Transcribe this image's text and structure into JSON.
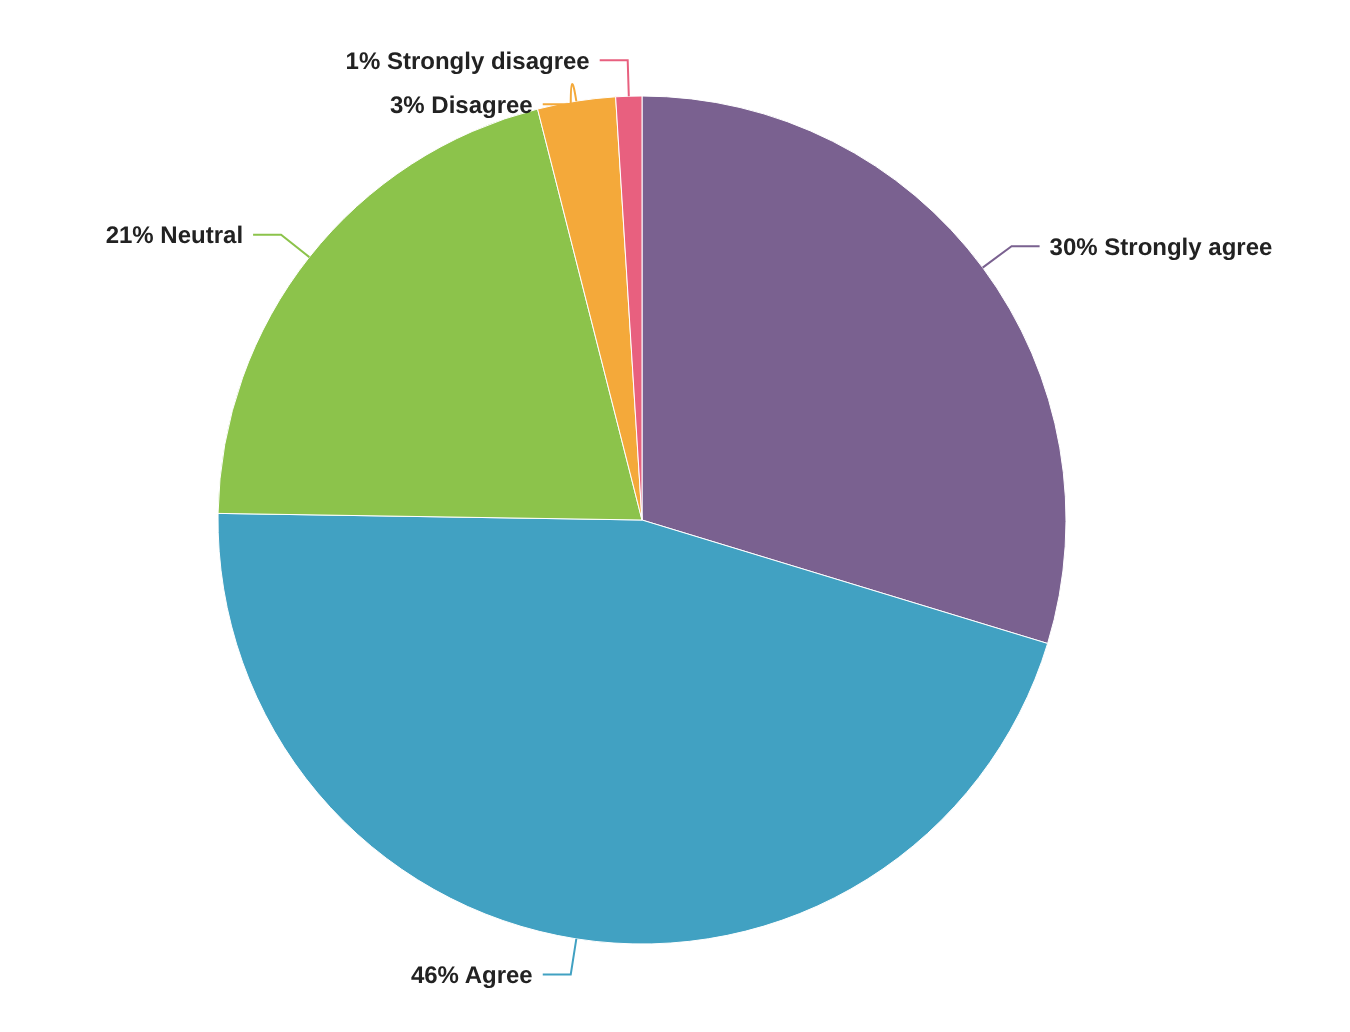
{
  "chart_data": {
    "type": "pie",
    "categories": [
      "Strongly agree",
      "Agree",
      "Neutral",
      "Disagree",
      "Strongly disagree"
    ],
    "values": [
      30,
      46,
      21,
      3,
      1
    ],
    "value_labels": [
      "30%",
      "46%",
      "21%",
      "3%",
      "1%"
    ],
    "colors": [
      "#7a6190",
      "#41a1c2",
      "#8cc34b",
      "#f4a93a",
      "#e8607f"
    ],
    "legend": false
  }
}
